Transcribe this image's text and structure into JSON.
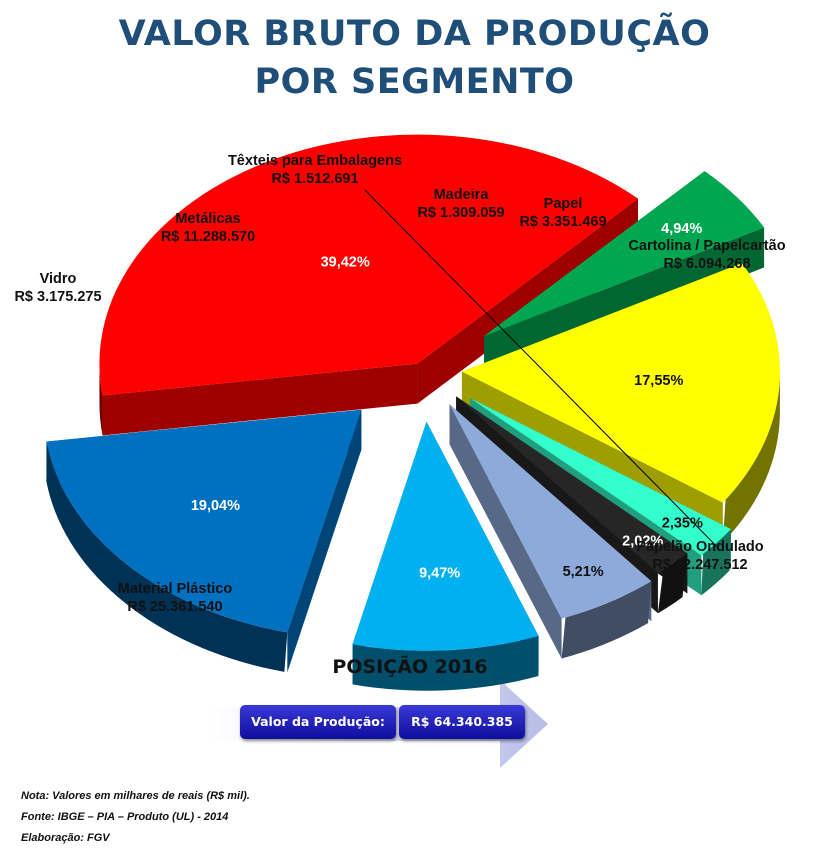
{
  "title_line1": "VALOR BRUTO DA PRODUÇÃO",
  "title_line2": "POR SEGMENTO",
  "chart_data": {
    "type": "pie",
    "title": "VALOR BRUTO DA PRODUÇÃO POR SEGMENTO",
    "three_d": true,
    "exploded": true,
    "slices": [
      {
        "name": "Material Plástico",
        "value_label": "R$ 25.361.540",
        "value": 25361540,
        "pct": 39.42,
        "pct_label": "39,42%",
        "color": "#ff0000"
      },
      {
        "name": "Vidro",
        "value_label": "R$ 3.175.275",
        "value": 3175275,
        "pct": 4.94,
        "pct_label": "4,94%",
        "color": "#00a650"
      },
      {
        "name": "Metálicas",
        "value_label": "R$ 11.288.570",
        "value": 11288570,
        "pct": 17.55,
        "pct_label": "17,55%",
        "color": "#ffff00"
      },
      {
        "name": "Têxteis para Embalagens",
        "value_label": "R$ 1.512.691",
        "value": 1512691,
        "pct": 2.35,
        "pct_label": "2,35%",
        "color": "#33ffcc"
      },
      {
        "name": "Madeira",
        "value_label": "R$ 1.309.059",
        "value": 1309059,
        "pct": 2.02,
        "pct_label": "2,02%",
        "color": "#262626"
      },
      {
        "name": "Papel",
        "value_label": "R$ 3.351.469",
        "value": 3351469,
        "pct": 5.21,
        "pct_label": "5,21%",
        "color": "#8eaadb"
      },
      {
        "name": "Cartolina / Papelcartão",
        "value_label": "R$ 6.094.268",
        "value": 6094268,
        "pct": 9.47,
        "pct_label": "9,47%",
        "color": "#00b0f0"
      },
      {
        "name": "Papelão Ondulado",
        "value_label": "R$ 12.247.512",
        "value": 12247512,
        "pct": 19.04,
        "pct_label": "19,04%",
        "color": "#0070c0"
      }
    ]
  },
  "position": {
    "title": "POSIÇÃO 2016",
    "label": "Valor da Produção:",
    "value": "R$ 64.340.385"
  },
  "notes": [
    "Nota: Valores  em milhares  de reais (R$ mil).",
    "Fonte: IBGE – PIA – Produto  (UL)  - 2014",
    "Elaboração:  FGV"
  ]
}
